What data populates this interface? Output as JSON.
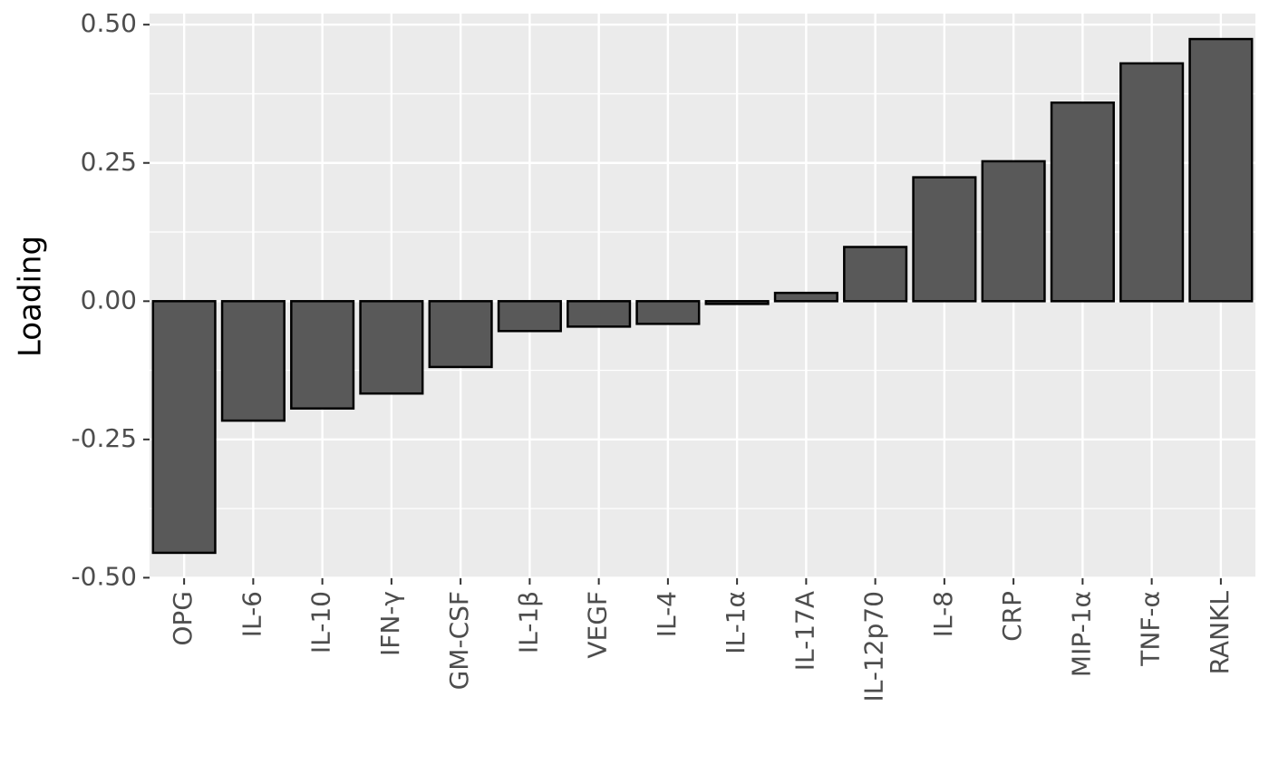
{
  "chart_data": {
    "type": "bar",
    "y_label": "Loading",
    "categories": [
      "OPG",
      "IL-6",
      "IL-10",
      "IFN-γ",
      "GM-CSF",
      "IL-1β",
      "VEGF",
      "IL-4",
      "IL-1α",
      "IL-17A",
      "IL-12p70",
      "IL-8",
      "CRP",
      "MIP-1α",
      "TNF-α",
      "RANKL"
    ],
    "values": [
      -0.455,
      -0.216,
      -0.194,
      -0.167,
      -0.119,
      -0.054,
      -0.046,
      -0.041,
      -0.005,
      0.015,
      0.098,
      0.224,
      0.253,
      0.359,
      0.43,
      0.474
    ],
    "color": "#595959",
    "ylim": [
      -0.501,
      0.52
    ],
    "yticks": [
      {
        "value": -0.5,
        "label": "-0.50"
      },
      -0.25,
      {
        "value": 0,
        "label": "0.00"
      },
      0.25,
      {
        "value": 0.5,
        "label": "0.50"
      }
    ],
    "grid": true
  }
}
